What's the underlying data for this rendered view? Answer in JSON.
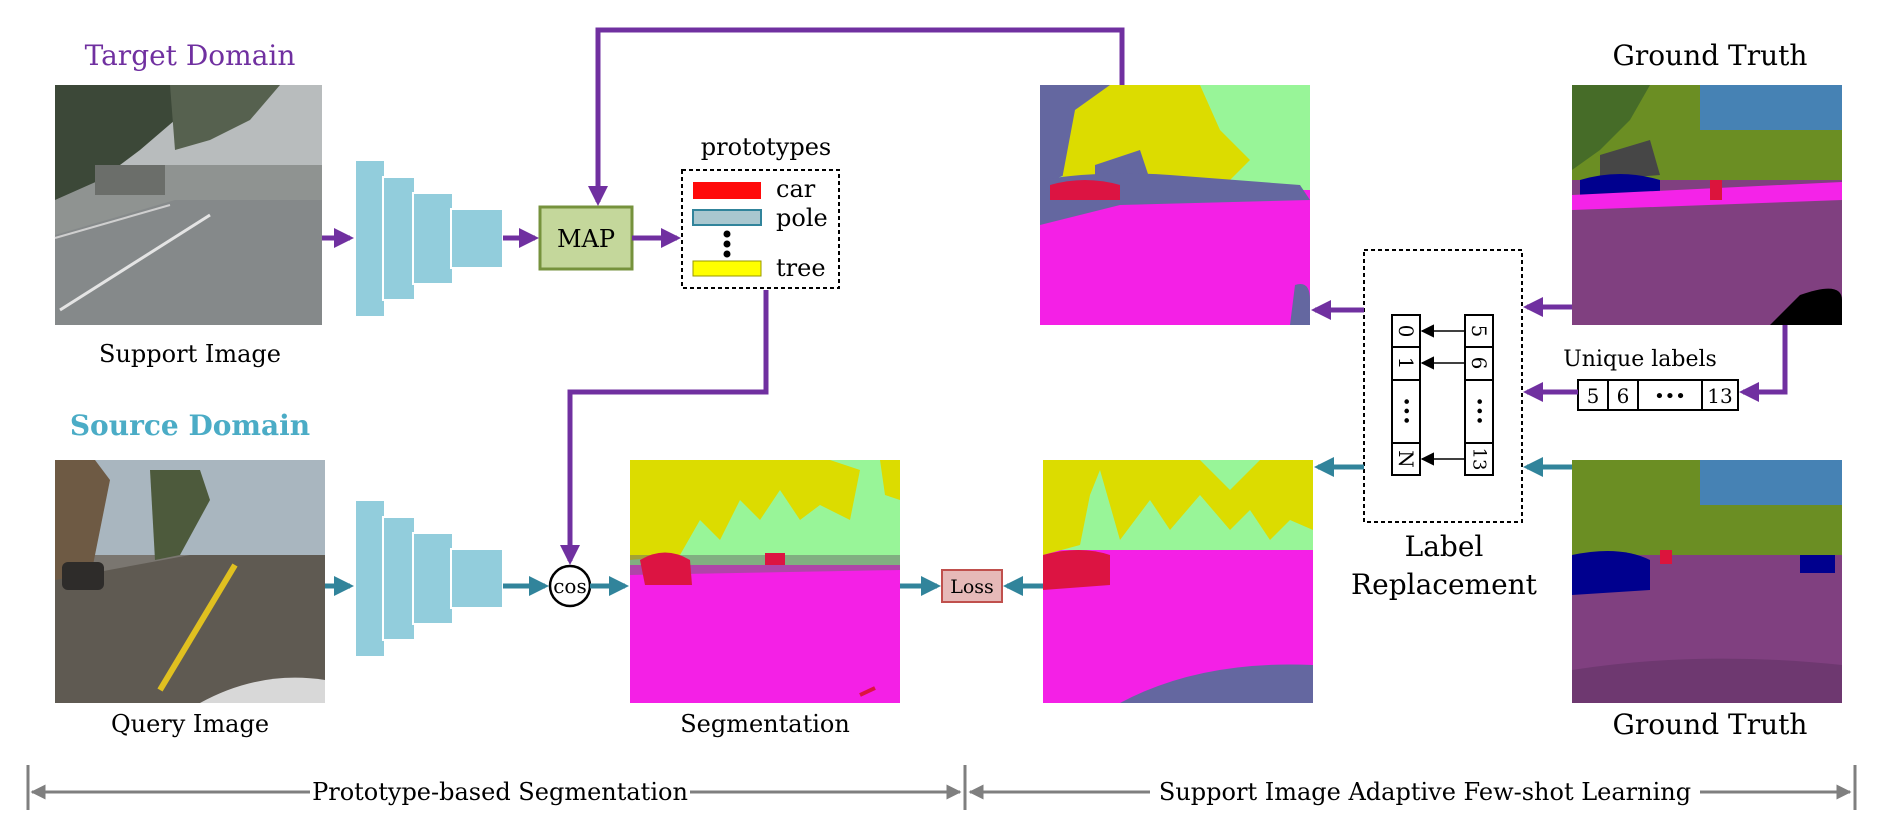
{
  "domains": {
    "target": "Target Domain",
    "source": "Source Domain"
  },
  "captions": {
    "support_image": "Support Image",
    "query_image": "Query Image",
    "segmentation": "Segmentation",
    "ground_truth_top": "Ground Truth",
    "ground_truth_bottom": "Ground Truth",
    "unique_labels": "Unique labels",
    "label_replacement_line1": "Label",
    "label_replacement_line2": "Replacement"
  },
  "nodes": {
    "map": "MAP",
    "cos": "cos",
    "loss": "Loss"
  },
  "prototypes": {
    "title": "prototypes",
    "items": [
      {
        "name": "car",
        "color": "#ff0a0a"
      },
      {
        "name": "pole",
        "color": "#a9c7cf"
      },
      {
        "name": "tree",
        "color": "#ffff00"
      }
    ]
  },
  "unique_labels": [
    "5",
    "6",
    "•••",
    "13"
  ],
  "label_replacement": {
    "left": [
      "0",
      "1",
      "•••",
      "N"
    ],
    "right": [
      "5",
      "6",
      "•••",
      "13"
    ]
  },
  "sections": {
    "left": "Prototype-based Segmentation",
    "right": "Support Image Adaptive Few-shot Learning"
  },
  "colors": {
    "target_arrow": "#7030a0",
    "source_arrow": "#31849b",
    "encoder": "#92cddc",
    "map_fill": "#c4d79b",
    "map_border": "#76923c",
    "loss_fill": "#e6b9b8",
    "loss_border": "#c0504d",
    "target_title": "#7030a0",
    "source_title": "#4bacc6",
    "bracket": "#7f7f7f"
  }
}
